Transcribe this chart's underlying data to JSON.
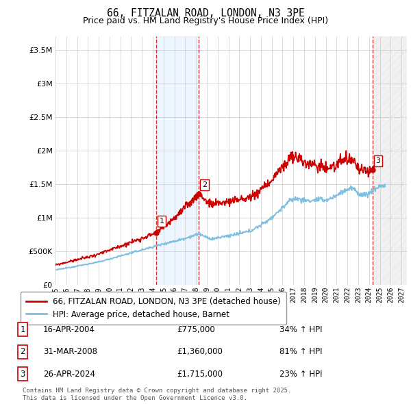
{
  "title": "66, FITZALAN ROAD, LONDON, N3 3PE",
  "subtitle": "Price paid vs. HM Land Registry's House Price Index (HPI)",
  "red_label": "66, FITZALAN ROAD, LONDON, N3 3PE (detached house)",
  "blue_label": "HPI: Average price, detached house, Barnet",
  "transactions": [
    {
      "num": 1,
      "date": "16-APR-2004",
      "price": 775000,
      "pct": "34%",
      "dir": "↑",
      "x_year": 2004.29
    },
    {
      "num": 2,
      "date": "31-MAR-2008",
      "price": 1360000,
      "pct": "81%",
      "dir": "↑",
      "x_year": 2008.25
    },
    {
      "num": 3,
      "date": "26-APR-2024",
      "price": 1715000,
      "pct": "23%",
      "dir": "↑",
      "x_year": 2024.32
    }
  ],
  "footer": "Contains HM Land Registry data © Crown copyright and database right 2025.\nThis data is licensed under the Open Government Licence v3.0.",
  "ylim": [
    0,
    3700000
  ],
  "xlim_start": 1995.0,
  "xlim_end": 2027.5,
  "red_color": "#cc0000",
  "blue_color": "#7fbfdf",
  "shade_color": "#ddeeff",
  "hatch_color": "#d8d8d8"
}
